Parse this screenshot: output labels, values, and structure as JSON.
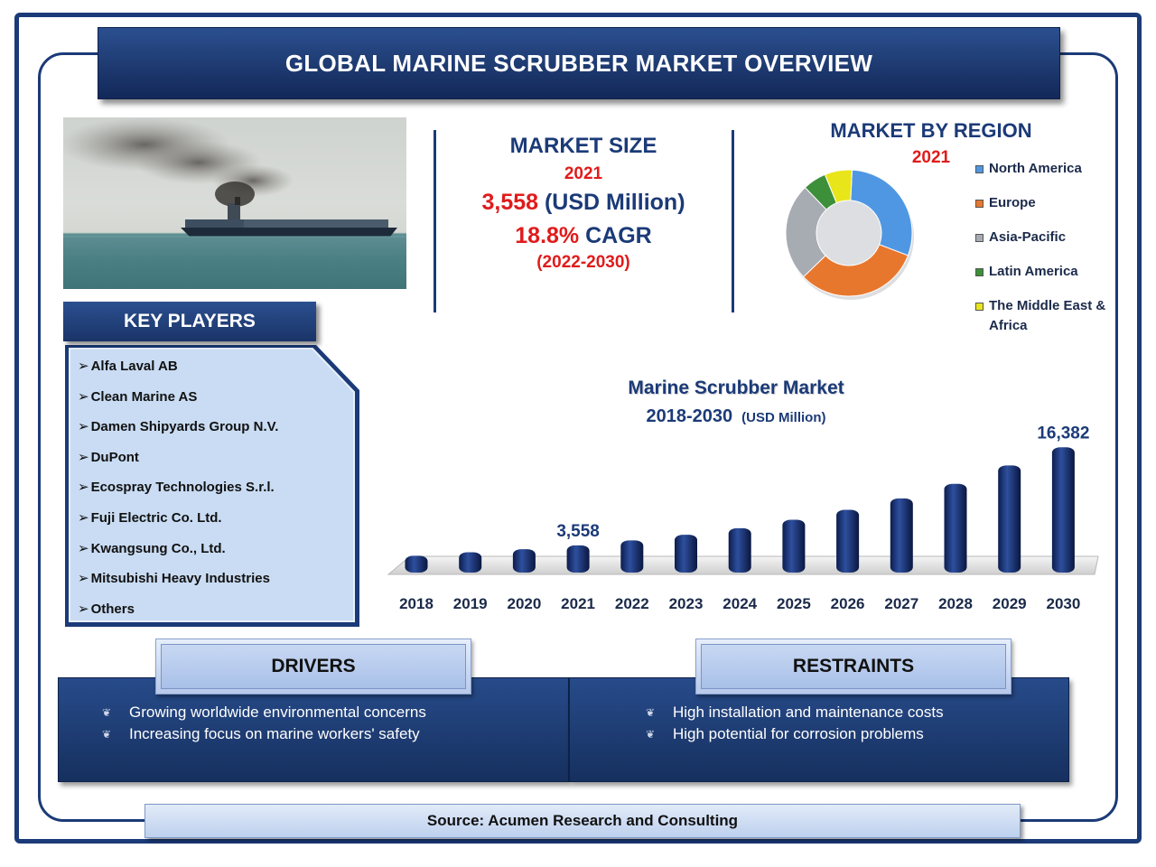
{
  "title": "GLOBAL MARINE SCRUBBER MARKET OVERVIEW",
  "market_size": {
    "heading": "MARKET SIZE",
    "year": "2021",
    "value": "3,558",
    "unit": "(USD Million)",
    "cagr_value": "18.8%",
    "cagr_label": "CAGR",
    "period": "(2022-2030)"
  },
  "region": {
    "heading": "MARKET BY REGION",
    "year": "2021",
    "legend": [
      "North America",
      "Europe",
      "Asia-Pacific",
      "Latin America",
      "The Middle East & Africa"
    ],
    "colors": [
      "#4f97e3",
      "#e8772e",
      "#a7abb2",
      "#3d8f3a",
      "#e8e51a"
    ]
  },
  "key_players": {
    "heading": "KEY PLAYERS",
    "items": [
      "Alfa Laval AB",
      "Clean Marine AS",
      "Damen Shipyards Group N.V.",
      "DuPont",
      "Ecospray Technologies S.r.l.",
      "Fuji Electric Co. Ltd.",
      "Kwangsung Co., Ltd.",
      "Mitsubishi Heavy Industries",
      "Others"
    ]
  },
  "chart": {
    "title": "Marine Scrubber Market",
    "subtitle_years": "2018-2030",
    "subtitle_unit": "(USD Million)",
    "label_2021": "3,558",
    "label_2030": "16,382"
  },
  "chart_data": [
    {
      "type": "bar",
      "title": "Marine Scrubber Market",
      "subtitle": "2018-2030 (USD Million)",
      "categories": [
        "2018",
        "2019",
        "2020",
        "2021",
        "2022",
        "2023",
        "2024",
        "2025",
        "2026",
        "2027",
        "2028",
        "2029",
        "2030"
      ],
      "values": [
        2200,
        2650,
        3050,
        3558,
        4200,
        4950,
        5800,
        6900,
        8200,
        9700,
        11600,
        14000,
        16382
      ],
      "data_labels": {
        "2021": "3,558",
        "2030": "16,382"
      },
      "ylim": [
        0,
        17000
      ],
      "grid": false
    },
    {
      "type": "pie",
      "title": "MARKET BY REGION",
      "subtitle": "2021",
      "categories": [
        "North America",
        "Europe",
        "Asia-Pacific",
        "Latin America",
        "The Middle East & Africa"
      ],
      "values": [
        30,
        32,
        25,
        6,
        7
      ]
    }
  ],
  "drivers": {
    "heading": "DRIVERS",
    "items": [
      "Growing worldwide environmental concerns",
      "Increasing focus on marine workers' safety"
    ]
  },
  "restraints": {
    "heading": "RESTRAINTS",
    "items": [
      "High installation and maintenance costs",
      "High potential for corrosion problems"
    ]
  },
  "source": "Source: Acumen Research and Consulting",
  "icons": {
    "list_arrow": "arrow-right-icon",
    "bullet": "leaf-bullet-icon"
  }
}
